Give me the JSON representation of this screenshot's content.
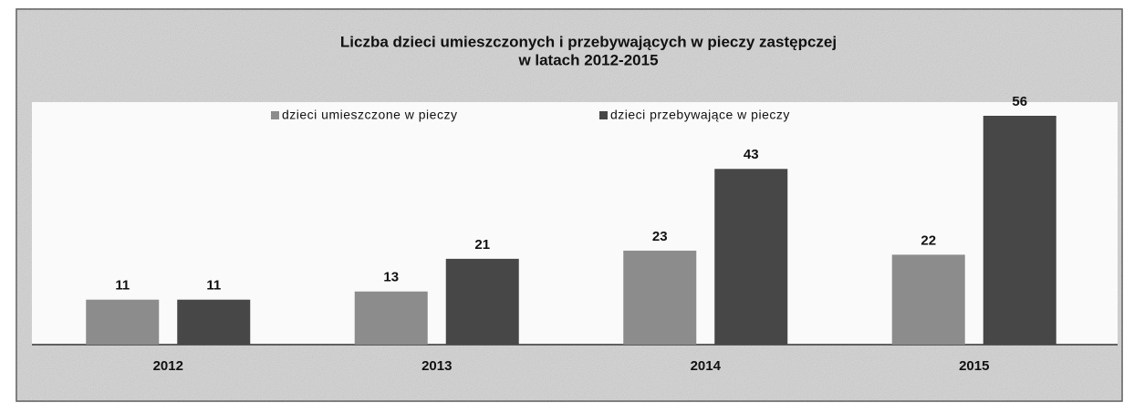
{
  "chart_data": {
    "type": "bar",
    "title": [
      "Liczba dzieci umieszczonych  i przebywających  w pieczy zastępczej",
      "w latach 2012-2015"
    ],
    "categories": [
      "2012",
      "2013",
      "2014",
      "2015"
    ],
    "series": [
      {
        "name": "dzieci umieszczone w pieczy",
        "color": "#8c8c8c",
        "values": [
          11,
          13,
          23,
          22
        ]
      },
      {
        "name": "dzieci przebywające w pieczy",
        "color": "#474747",
        "values": [
          11,
          21,
          43,
          56
        ]
      }
    ],
    "legend": "top"
  }
}
